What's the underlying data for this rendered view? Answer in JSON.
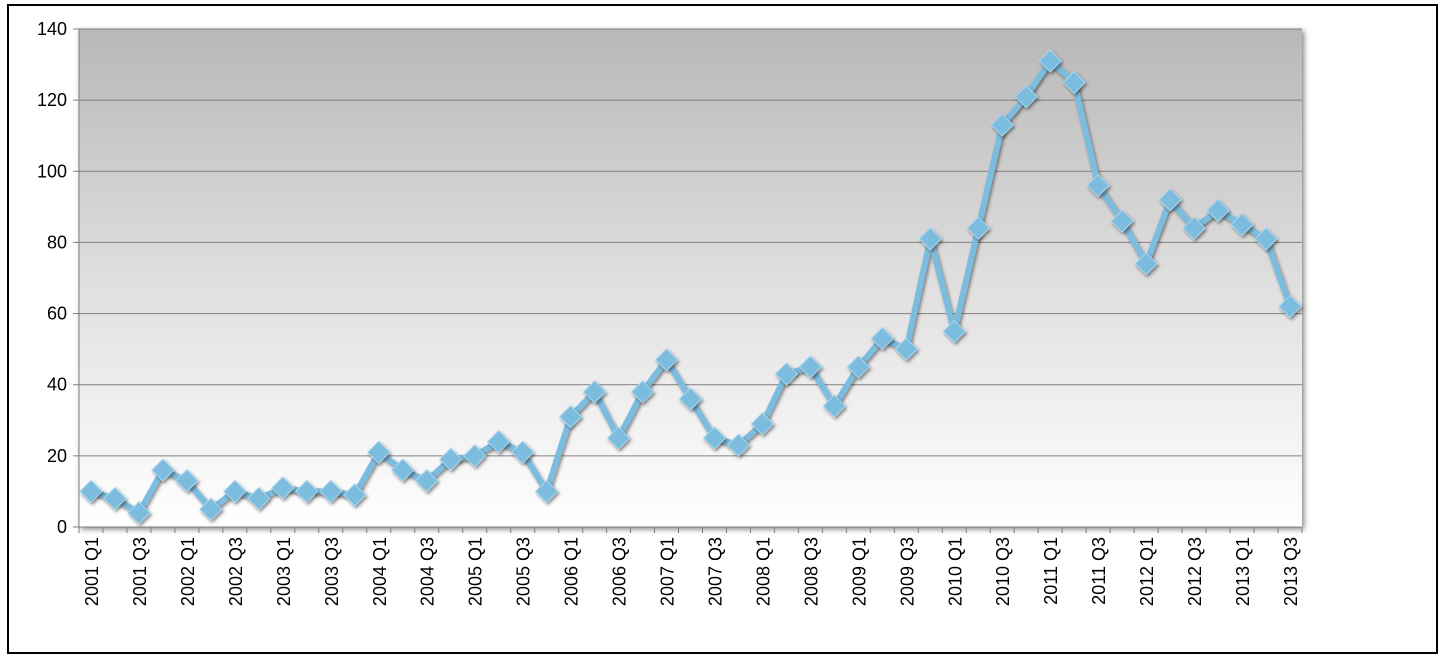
{
  "chart_data": {
    "type": "line",
    "title": "",
    "xlabel": "",
    "ylabel": "",
    "ylim": [
      0,
      140
    ],
    "yticks": [
      0,
      20,
      40,
      60,
      80,
      100,
      120,
      140
    ],
    "grid": true,
    "legend": "none",
    "colors": {
      "line": "#7BBCDF",
      "marker": "#7BBCDF",
      "plot_top": "#B8B8B8",
      "plot_bottom": "#FFFFFF",
      "grid": "#808080"
    },
    "categories": [
      "2001 Q1",
      "2001 Q2",
      "2001 Q3",
      "2001 Q4",
      "2002 Q1",
      "2002 Q2",
      "2002 Q3",
      "2002 Q4",
      "2003 Q1",
      "2003 Q2",
      "2003 Q3",
      "2003 Q4",
      "2004 Q1",
      "2004 Q2",
      "2004 Q3",
      "2004 Q4",
      "2005 Q1",
      "2005 Q2",
      "2005 Q3",
      "2005 Q4",
      "2006 Q1",
      "2006 Q2",
      "2006 Q3",
      "2006 Q4",
      "2007 Q1",
      "2007 Q2",
      "2007 Q3",
      "2007 Q4",
      "2008 Q1",
      "2008 Q2",
      "2008 Q3",
      "2008 Q4",
      "2009 Q1",
      "2009 Q2",
      "2009 Q3",
      "2009 Q4",
      "2010 Q1",
      "2010 Q2",
      "2010 Q3",
      "2010 Q4",
      "2011 Q1",
      "2011 Q2",
      "2011 Q3",
      "2011 Q4",
      "2012 Q1",
      "2012 Q2",
      "2012 Q3",
      "2012 Q4",
      "2013 Q1",
      "2013 Q2",
      "2013 Q3"
    ],
    "tick_labels": [
      "2001 Q1",
      "2001 Q3",
      "2002 Q1",
      "2002 Q3",
      "2003 Q1",
      "2003 Q3",
      "2004 Q1",
      "2004 Q3",
      "2005 Q1",
      "2005 Q3",
      "2006 Q1",
      "2006 Q3",
      "2007 Q1",
      "2007 Q3",
      "2008 Q1",
      "2008 Q3",
      "2009 Q1",
      "2009 Q3",
      "2010 Q1",
      "2010 Q3",
      "2011 Q1",
      "2011 Q3",
      "2012 Q1",
      "2012 Q3",
      "2013 Q1",
      "2013 Q3"
    ],
    "values": [
      10,
      8,
      4,
      16,
      13,
      5,
      10,
      8,
      11,
      10,
      10,
      9,
      21,
      16,
      13,
      19,
      20,
      24,
      21,
      10,
      31,
      38,
      25,
      38,
      47,
      36,
      25,
      23,
      29,
      43,
      45,
      34,
      45,
      53,
      50,
      81,
      55,
      84,
      113,
      121,
      131,
      125,
      96,
      86,
      74,
      92,
      84,
      89,
      85,
      81,
      62
    ]
  }
}
